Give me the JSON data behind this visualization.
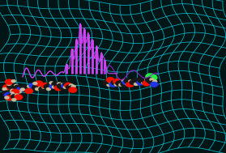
{
  "bg_color": "#001515",
  "grid_color": "#00d4e8",
  "grid_alpha": 0.85,
  "grid_linewidth": 0.55,
  "nx": 22,
  "ny": 16,
  "spectrum_color": "#dd44ff",
  "spectrum_color2": "#9922cc",
  "spectrum_linewidth": 1.1,
  "molecule_colors": {
    "carbon": "#181818",
    "oxygen": "#ee1100",
    "nitrogen": "#2233ee",
    "hydrogen": "#c8bc9a",
    "chlorine": "#22ee44"
  },
  "figsize": [
    2.79,
    1.89
  ],
  "dpi": 100
}
